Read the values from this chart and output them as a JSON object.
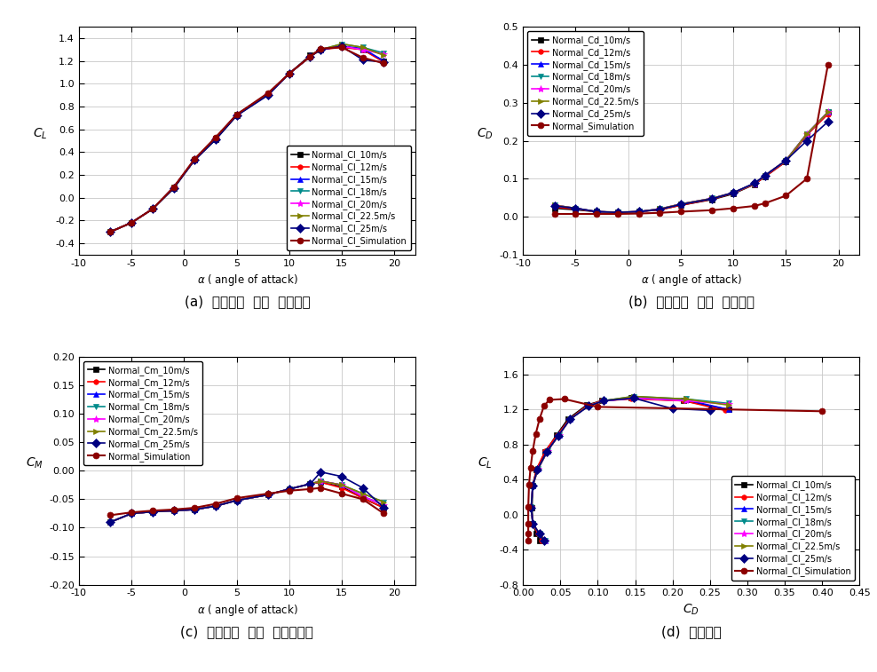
{
  "alpha": [
    -7,
    -5,
    -3,
    -1,
    1,
    3,
    5,
    8,
    10,
    12,
    13,
    15,
    17,
    19
  ],
  "CL": {
    "10m/s": [
      -0.3,
      -0.22,
      -0.1,
      0.08,
      0.33,
      0.51,
      0.72,
      0.91,
      1.09,
      1.25,
      1.3,
      1.33,
      1.3,
      1.2
    ],
    "12m/s": [
      -0.3,
      -0.22,
      -0.1,
      0.09,
      0.33,
      0.52,
      0.73,
      0.91,
      1.09,
      1.24,
      1.3,
      1.32,
      1.3,
      1.19
    ],
    "15m/s": [
      -0.3,
      -0.22,
      -0.1,
      0.09,
      0.33,
      0.52,
      0.73,
      0.91,
      1.09,
      1.24,
      1.3,
      1.33,
      1.31,
      1.2
    ],
    "18m/s": [
      -0.3,
      -0.22,
      -0.1,
      0.09,
      0.33,
      0.52,
      0.73,
      0.91,
      1.09,
      1.24,
      1.3,
      1.35,
      1.32,
      1.27
    ],
    "20m/s": [
      -0.3,
      -0.22,
      -0.1,
      0.09,
      0.33,
      0.52,
      0.73,
      0.91,
      1.09,
      1.24,
      1.3,
      1.33,
      1.3,
      1.26
    ],
    "22.5m/s": [
      -0.3,
      -0.22,
      -0.1,
      0.09,
      0.33,
      0.52,
      0.73,
      0.91,
      1.09,
      1.24,
      1.3,
      1.35,
      1.32,
      1.25
    ],
    "25m/s": [
      -0.3,
      -0.22,
      -0.1,
      0.08,
      0.33,
      0.51,
      0.72,
      0.9,
      1.09,
      1.24,
      1.3,
      1.33,
      1.21,
      1.19
    ],
    "sim": [
      -0.3,
      -0.22,
      -0.1,
      0.09,
      0.34,
      0.53,
      0.73,
      0.92,
      1.09,
      1.24,
      1.31,
      1.32,
      1.23,
      1.18
    ]
  },
  "CD": {
    "10m/s": [
      0.022,
      0.018,
      0.013,
      0.012,
      0.013,
      0.018,
      0.03,
      0.045,
      0.06,
      0.085,
      0.105,
      0.145,
      0.215,
      0.275
    ],
    "12m/s": [
      0.025,
      0.02,
      0.013,
      0.011,
      0.013,
      0.018,
      0.03,
      0.046,
      0.062,
      0.085,
      0.105,
      0.145,
      0.215,
      0.27
    ],
    "15m/s": [
      0.03,
      0.022,
      0.013,
      0.011,
      0.013,
      0.02,
      0.033,
      0.048,
      0.063,
      0.087,
      0.108,
      0.148,
      0.218,
      0.275
    ],
    "18m/s": [
      0.03,
      0.022,
      0.013,
      0.011,
      0.013,
      0.02,
      0.033,
      0.048,
      0.063,
      0.087,
      0.108,
      0.148,
      0.218,
      0.275
    ],
    "20m/s": [
      0.03,
      0.022,
      0.013,
      0.011,
      0.013,
      0.02,
      0.033,
      0.048,
      0.063,
      0.087,
      0.108,
      0.148,
      0.218,
      0.275
    ],
    "22.5m/s": [
      0.03,
      0.022,
      0.013,
      0.011,
      0.013,
      0.02,
      0.033,
      0.048,
      0.063,
      0.087,
      0.108,
      0.148,
      0.218,
      0.275
    ],
    "25m/s": [
      0.028,
      0.022,
      0.013,
      0.011,
      0.013,
      0.019,
      0.032,
      0.047,
      0.063,
      0.088,
      0.108,
      0.148,
      0.2,
      0.25
    ],
    "sim": [
      0.007,
      0.007,
      0.007,
      0.007,
      0.008,
      0.01,
      0.013,
      0.017,
      0.022,
      0.028,
      0.035,
      0.055,
      0.1,
      0.4
    ]
  },
  "CM": {
    "10m/s": [
      -0.09,
      -0.075,
      -0.072,
      -0.07,
      -0.068,
      -0.062,
      -0.052,
      -0.042,
      -0.032,
      -0.023,
      -0.02,
      -0.028,
      -0.048,
      -0.065
    ],
    "12m/s": [
      -0.09,
      -0.075,
      -0.072,
      -0.07,
      -0.068,
      -0.062,
      -0.052,
      -0.042,
      -0.032,
      -0.023,
      -0.02,
      -0.03,
      -0.048,
      -0.065
    ],
    "15m/s": [
      -0.09,
      -0.075,
      -0.072,
      -0.07,
      -0.068,
      -0.062,
      -0.052,
      -0.042,
      -0.032,
      -0.023,
      -0.018,
      -0.025,
      -0.045,
      -0.06
    ],
    "18m/s": [
      -0.09,
      -0.075,
      -0.072,
      -0.07,
      -0.068,
      -0.062,
      -0.052,
      -0.042,
      -0.032,
      -0.023,
      -0.018,
      -0.025,
      -0.04,
      -0.055
    ],
    "20m/s": [
      -0.09,
      -0.075,
      -0.072,
      -0.07,
      -0.068,
      -0.062,
      -0.052,
      -0.042,
      -0.032,
      -0.023,
      -0.018,
      -0.025,
      -0.045,
      -0.06
    ],
    "22.5m/s": [
      -0.09,
      -0.075,
      -0.072,
      -0.07,
      -0.068,
      -0.062,
      -0.052,
      -0.042,
      -0.032,
      -0.023,
      -0.018,
      -0.025,
      -0.04,
      -0.055
    ],
    "25m/s": [
      -0.09,
      -0.075,
      -0.072,
      -0.07,
      -0.068,
      -0.062,
      -0.052,
      -0.042,
      -0.032,
      -0.023,
      -0.002,
      -0.01,
      -0.03,
      -0.065
    ],
    "sim": [
      -0.078,
      -0.073,
      -0.07,
      -0.068,
      -0.065,
      -0.058,
      -0.048,
      -0.04,
      -0.035,
      -0.032,
      -0.03,
      -0.04,
      -0.05,
      -0.075
    ]
  },
  "colors": {
    "10m/s": "#000000",
    "12m/s": "#FF0000",
    "15m/s": "#0000FF",
    "18m/s": "#008B8B",
    "20m/s": "#FF00FF",
    "22.5m/s": "#808000",
    "25m/s": "#000080",
    "sim": "#8B0000"
  },
  "markers": {
    "10m/s": "s",
    "12m/s": "o",
    "15m/s": "^",
    "18m/s": "v",
    "20m/s": "*",
    "22.5m/s": ">",
    "25m/s": "D",
    "sim": "o"
  },
  "markersizes": {
    "10m/s": 4,
    "12m/s": 4,
    "15m/s": 5,
    "18m/s": 5,
    "20m/s": 6,
    "22.5m/s": 5,
    "25m/s": 5,
    "sim": 5
  },
  "cl_labels": {
    "10m/s": "Normal_Cl_10m/s",
    "12m/s": "Normal_Cl_12m/s",
    "15m/s": "Normal_Cl_15m/s",
    "18m/s": "Normal_Cl_18m/s",
    "20m/s": "Normal_Cl_20m/s",
    "22.5m/s": "Normal_Cl_22.5m/s",
    "25m/s": "Normal_Cl_25m/s",
    "sim": "Normal_Cl_Simulation"
  },
  "cd_labels": {
    "10m/s": "Normal_Cd_10m/s",
    "12m/s": "Normal_Cd_12m/s",
    "15m/s": "Normal_Cd_15m/s",
    "18m/s": "Normal_Cd_18m/s",
    "20m/s": "Normal_Cd_20m/s",
    "22.5m/s": "Normal_Cd_22.5m/s",
    "25m/s": "Normal_Cd_25m/s",
    "sim": "Normal_Simulation"
  },
  "cm_labels": {
    "10m/s": "Normal_Cm_10m/s",
    "12m/s": "Normal_Cm_12m/s",
    "15m/s": "Normal_Cm_15m/s",
    "18m/s": "Normal_Cm_18m/s",
    "20m/s": "Normal_Cm_20m/s",
    "22.5m/s": "Normal_Cm_22.5m/s",
    "25m/s": "Normal_Cm_25m/s",
    "sim": "Normal_Simulation"
  },
  "polar_labels": {
    "10m/s": "Normal_Cl_10m/s",
    "12m/s": "Normal_Cl_12m/s",
    "15m/s": "Normal_Cl_15m/s",
    "18m/s": "Normal_Cl_18m/s",
    "20m/s": "Normal_Cl_20m/s",
    "22.5m/s": "Normal_Cl_22.5m/s",
    "25m/s": "Normal_Cl_25m/s",
    "sim": "Normal_Cl_Simulation"
  },
  "caption_a": "(a)  받음각에  따른  양력계수",
  "caption_b": "(b)  받음각에  따른  항력계수",
  "caption_c": "(c)  받음각에  따른  피칭모멘트",
  "caption_d": "(d)  양항공선",
  "CL_ylim": [
    -0.5,
    1.5
  ],
  "CD_ylim": [
    -0.1,
    0.5
  ],
  "CM_ylim": [
    -0.2,
    0.2
  ],
  "alpha_xlim": [
    -10,
    22
  ],
  "polar_xlim": [
    0.0,
    0.45
  ],
  "polar_ylim": [
    -0.8,
    1.8
  ]
}
